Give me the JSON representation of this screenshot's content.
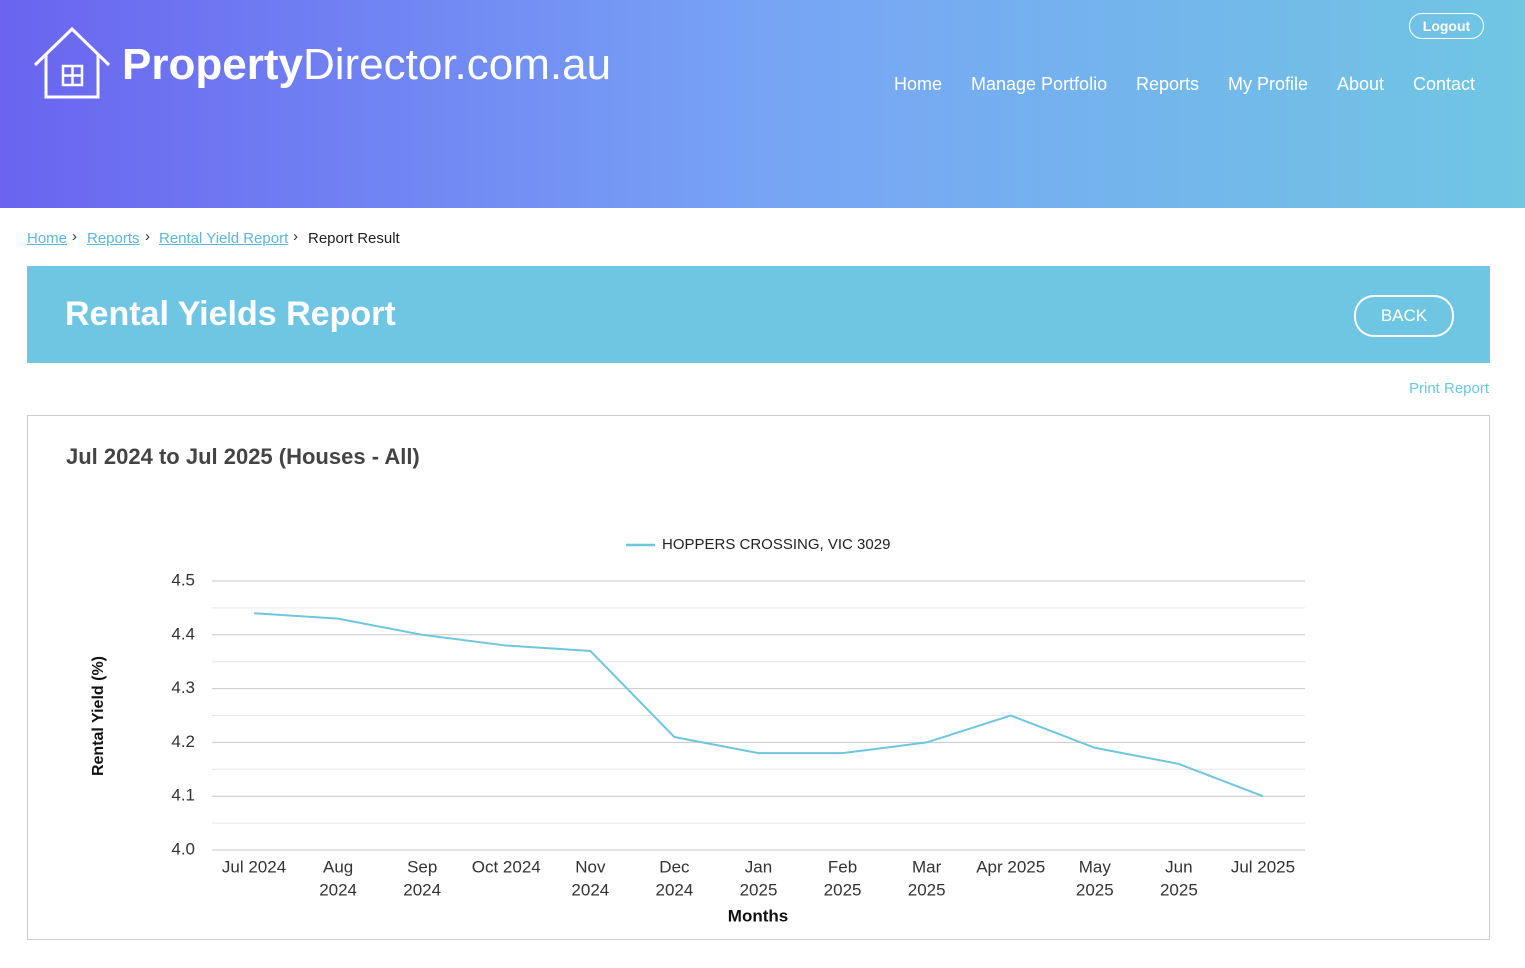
{
  "header": {
    "logo": {
      "bold": "Property",
      "light": "Director.com.au"
    },
    "logout": "Logout",
    "nav": [
      "Home",
      "Manage Portfolio",
      "Reports",
      "My Profile",
      "About",
      "Contact"
    ]
  },
  "breadcrumb": {
    "links": [
      "Home",
      "Reports",
      "Rental Yield Report"
    ],
    "current": "Report Result"
  },
  "banner": {
    "title": "Rental Yields Report",
    "button": "BACK"
  },
  "print": "Print Report",
  "chart_data": {
    "type": "line",
    "title": "Jul 2024 to Jul 2025 (Houses - All)",
    "categories": [
      "Jul 2024",
      [
        "Aug",
        "2024"
      ],
      [
        "Sep",
        "2024"
      ],
      "Oct 2024",
      [
        "Nov",
        "2024"
      ],
      [
        "Dec",
        "2024"
      ],
      [
        "Jan",
        "2025"
      ],
      [
        "Feb",
        "2025"
      ],
      [
        "Mar",
        "2025"
      ],
      "Apr 2025",
      [
        "May",
        "2025"
      ],
      [
        "Jun",
        "2025"
      ],
      "Jul 2025"
    ],
    "series": [
      {
        "name": "HOPPERS CROSSING, VIC 3029",
        "color": "#6ec6df",
        "values": [
          4.44,
          4.43,
          4.4,
          4.38,
          4.37,
          4.21,
          4.18,
          4.18,
          4.2,
          4.25,
          4.19,
          4.16,
          4.1
        ]
      }
    ],
    "ylim": [
      4.0,
      4.5
    ],
    "yticks": [
      {
        "value": 4,
        "label": "4.0"
      },
      4.1,
      4.2,
      4.3,
      4.4,
      4.5
    ],
    "y_label": "Rental Yield (%)",
    "x_label": "Months",
    "grid": true,
    "minor_grid": true,
    "legend": "top"
  }
}
